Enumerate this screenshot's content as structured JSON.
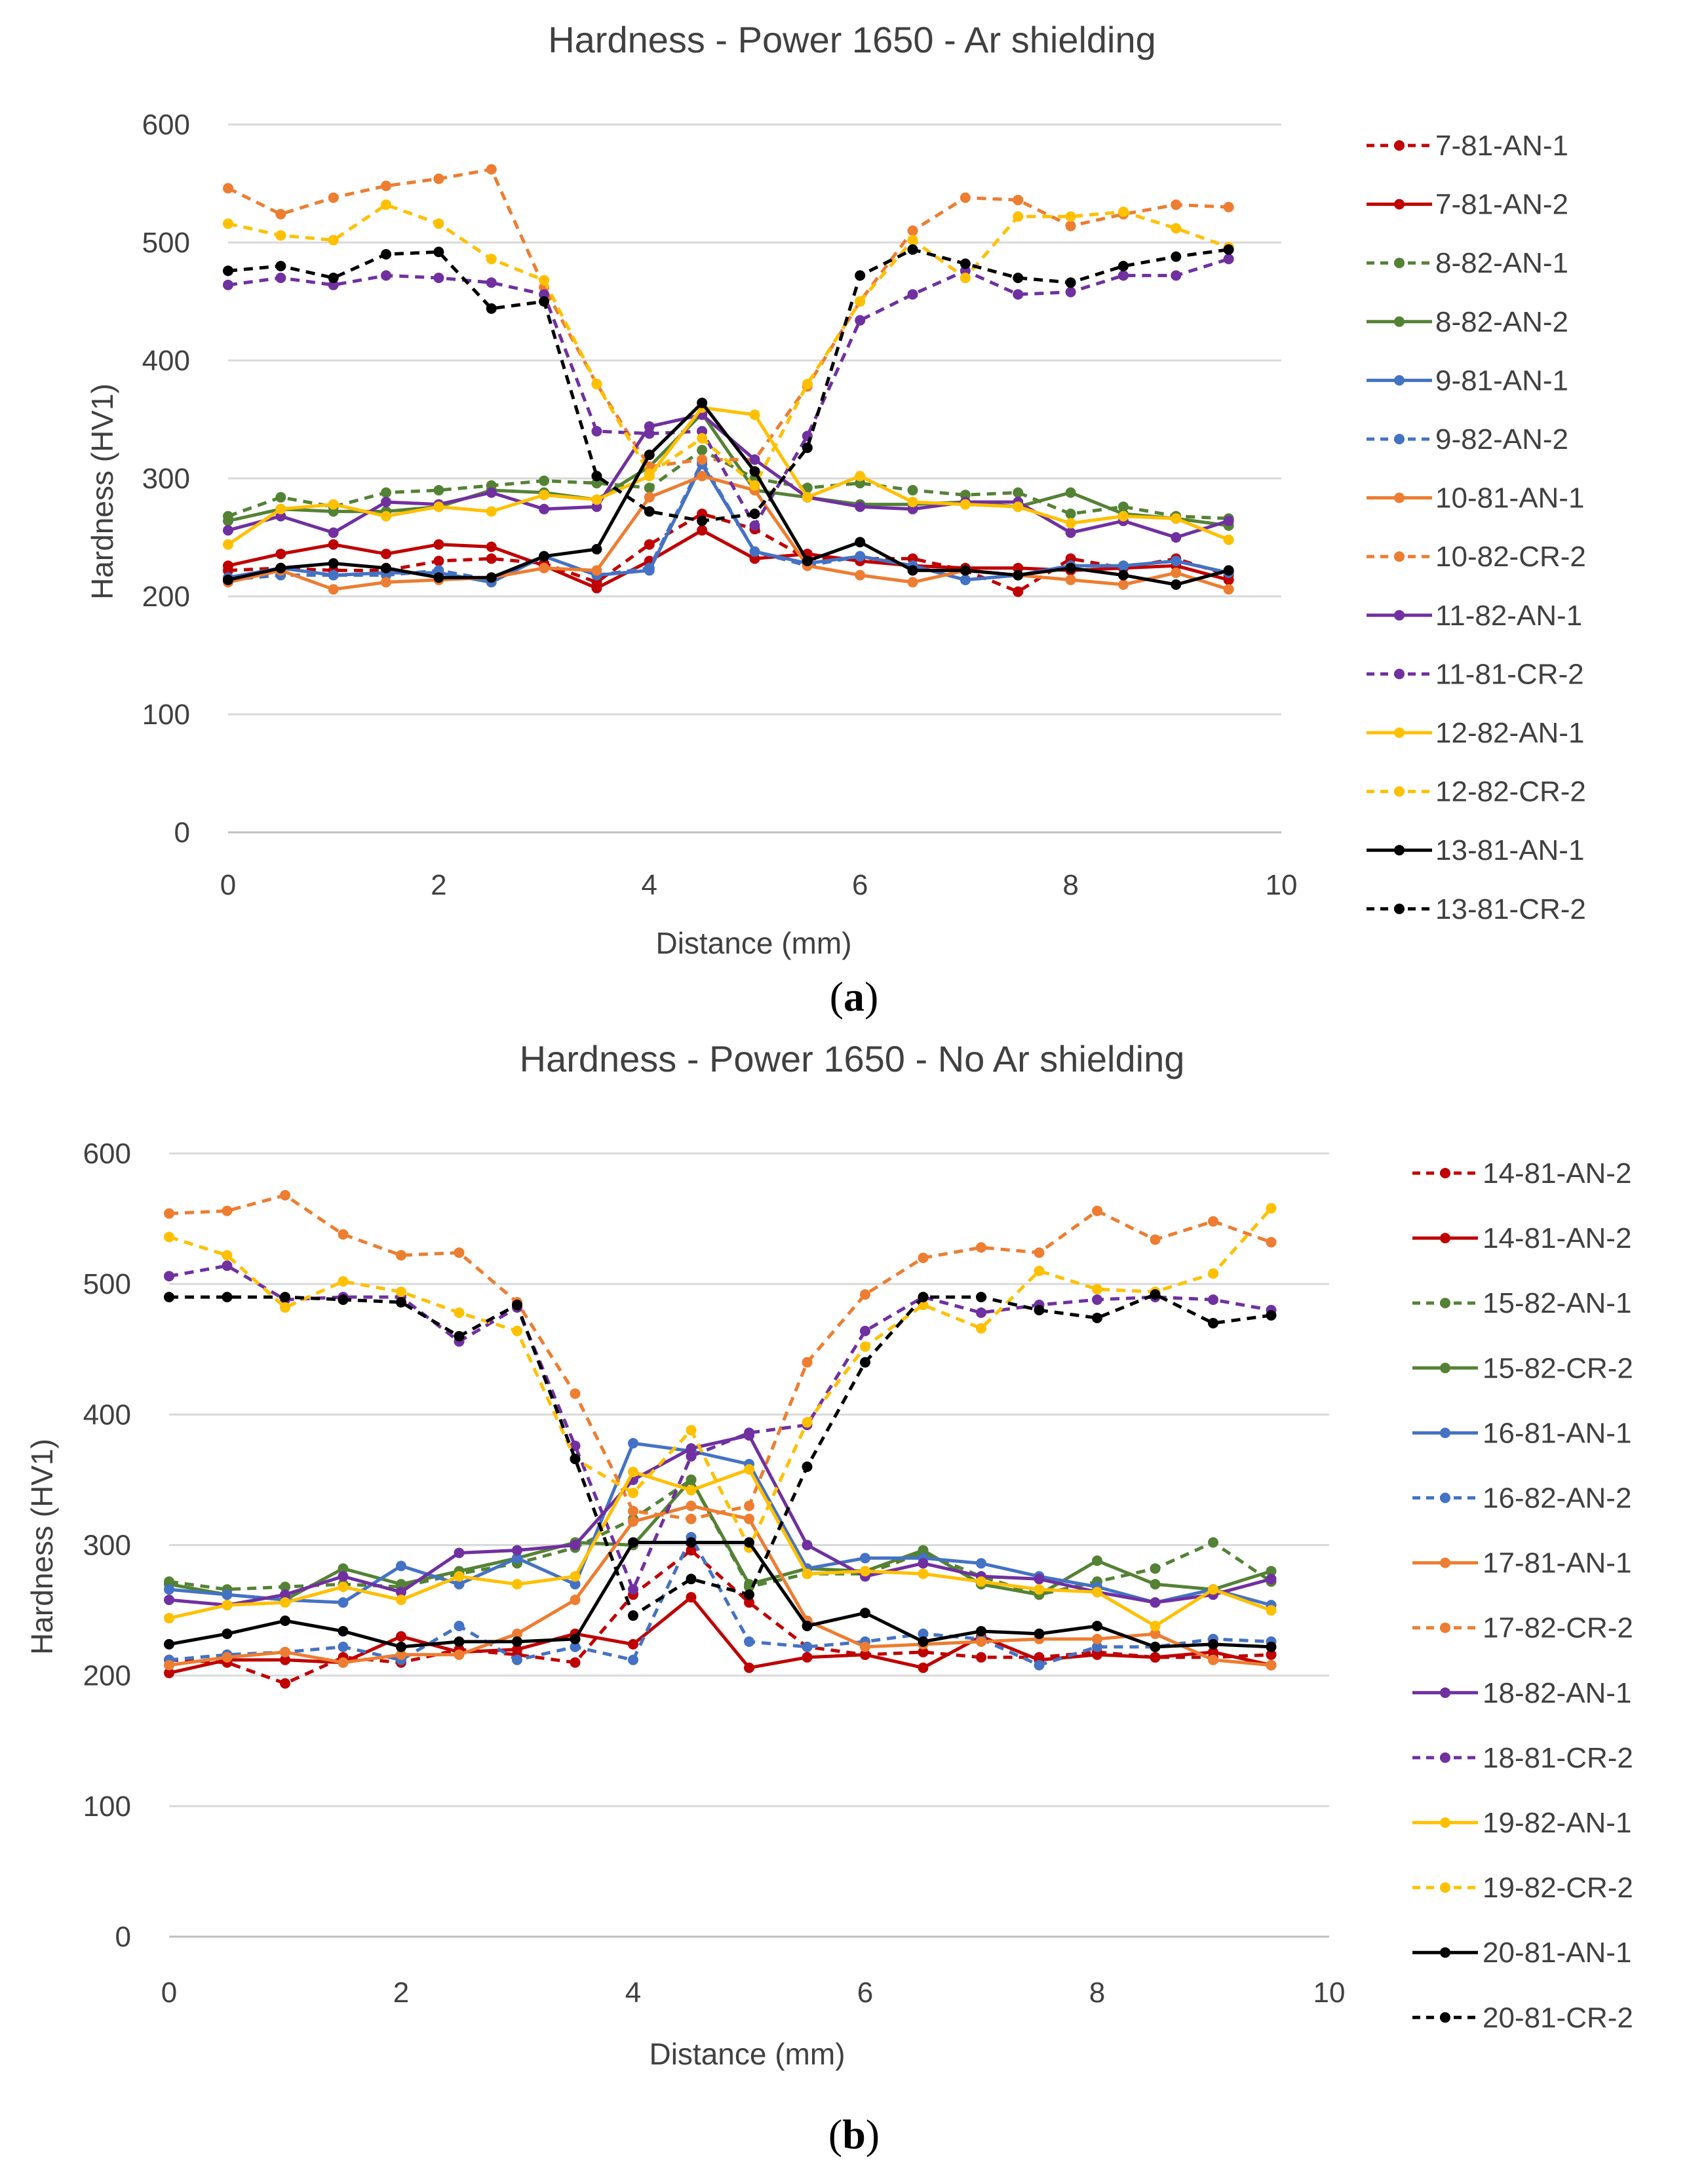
{
  "colors": {
    "red": "#C00000",
    "green": "#548235",
    "blue": "#4472C4",
    "orange": "#ED7D31",
    "purple": "#7030A0",
    "yellow": "#FFC000",
    "black": "#000000",
    "grid": "#D9D9D9",
    "text": "#404040"
  },
  "chart_data": [
    {
      "type": "line",
      "panel_label": "a",
      "title": "Hardness - Power 1650 - Ar shielding",
      "xlabel": "Distance (mm)",
      "ylabel": "Hardness (HV1)",
      "xlim": [
        0,
        10
      ],
      "ylim": [
        0,
        600
      ],
      "x_ticks": [
        0,
        2,
        4,
        6,
        8,
        10
      ],
      "y_ticks": [
        0,
        100,
        200,
        300,
        400,
        500,
        600
      ],
      "grid": "horizontal",
      "legend": "right",
      "x": [
        0,
        0.5,
        1,
        1.5,
        2,
        2.5,
        3,
        3.5,
        4,
        4.5,
        5,
        5.5,
        6,
        6.5,
        7,
        7.5,
        8,
        8.5,
        9,
        9.5
      ],
      "series": [
        {
          "name": "7-81-AN-1",
          "color": "red",
          "dashed": true,
          "values": [
            222,
            224,
            222,
            222,
            230,
            232,
            228,
            212,
            244,
            270,
            257,
            232,
            232,
            232,
            222,
            204,
            232,
            224,
            232,
            218
          ]
        },
        {
          "name": "7-81-AN-2",
          "color": "red",
          "dashed": false,
          "values": [
            226,
            236,
            244,
            236,
            244,
            242,
            226,
            207,
            230,
            256,
            232,
            236,
            230,
            226,
            224,
            224,
            222,
            224,
            226,
            214
          ]
        },
        {
          "name": "8-82-AN-1",
          "color": "green",
          "dashed": true,
          "values": [
            268,
            284,
            276,
            288,
            290,
            294,
            298,
            296,
            292,
            324,
            300,
            292,
            296,
            290,
            286,
            288,
            270,
            276,
            268,
            266
          ]
        },
        {
          "name": "8-82-AN-2",
          "color": "green",
          "dashed": false,
          "values": [
            264,
            274,
            272,
            272,
            276,
            290,
            288,
            282,
            310,
            355,
            290,
            284,
            278,
            278,
            280,
            276,
            288,
            270,
            266,
            260
          ]
        },
        {
          "name": "9-81-AN-1",
          "color": "blue",
          "dashed": false,
          "values": [
            216,
            224,
            218,
            220,
            220,
            212,
            234,
            218,
            222,
            312,
            238,
            228,
            234,
            226,
            214,
            218,
            226,
            226,
            230,
            220
          ]
        },
        {
          "name": "9-82-AN-2",
          "color": "blue",
          "dashed": true,
          "values": [
            214,
            218,
            218,
            218,
            222,
            214,
            234,
            218,
            224,
            314,
            238,
            226,
            234,
            226,
            214,
            218,
            226,
            226,
            230,
            220
          ]
        },
        {
          "name": "10-81-AN-1",
          "color": "orange",
          "dashed": false,
          "values": [
            212,
            222,
            206,
            212,
            214,
            216,
            224,
            222,
            284,
            302,
            290,
            226,
            218,
            212,
            222,
            218,
            214,
            210,
            220,
            206
          ]
        },
        {
          "name": "10-82-CR-2",
          "color": "orange",
          "dashed": true,
          "values": [
            546,
            524,
            538,
            548,
            554,
            562,
            462,
            380,
            310,
            316,
            316,
            378,
            450,
            510,
            538,
            536,
            514,
            524,
            532,
            530
          ]
        },
        {
          "name": "11-82-AN-1",
          "color": "purple",
          "dashed": false,
          "values": [
            256,
            268,
            254,
            280,
            278,
            288,
            274,
            276,
            344,
            354,
            316,
            284,
            276,
            274,
            280,
            280,
            254,
            264,
            250,
            264
          ]
        },
        {
          "name": "11-81-CR-2",
          "color": "purple",
          "dashed": true,
          "values": [
            464,
            470,
            464,
            472,
            470,
            466,
            456,
            340,
            338,
            340,
            260,
            336,
            434,
            456,
            476,
            456,
            458,
            472,
            472,
            486
          ]
        },
        {
          "name": "12-82-AN-1",
          "color": "yellow",
          "dashed": false,
          "values": [
            244,
            274,
            278,
            268,
            276,
            272,
            286,
            282,
            302,
            360,
            354,
            284,
            302,
            280,
            278,
            276,
            262,
            268,
            266,
            248
          ]
        },
        {
          "name": "12-82-CR-2",
          "color": "yellow",
          "dashed": true,
          "values": [
            516,
            506,
            502,
            532,
            516,
            486,
            468,
            380,
            304,
            334,
            294,
            380,
            450,
            502,
            470,
            522,
            522,
            526,
            512,
            496
          ]
        },
        {
          "name": "13-81-AN-1",
          "color": "black",
          "dashed": false,
          "values": [
            214,
            224,
            228,
            224,
            216,
            216,
            234,
            240,
            320,
            364,
            306,
            230,
            246,
            222,
            222,
            218,
            224,
            218,
            210,
            222
          ]
        },
        {
          "name": "13-81-CR-2",
          "color": "black",
          "dashed": true,
          "values": [
            476,
            480,
            470,
            490,
            492,
            444,
            450,
            302,
            272,
            264,
            270,
            326,
            472,
            494,
            482,
            470,
            466,
            480,
            488,
            494
          ]
        }
      ]
    },
    {
      "type": "line",
      "panel_label": "b",
      "title": "Hardness - Power 1650 - No Ar shielding",
      "xlabel": "Distance (mm)",
      "ylabel": "Hardness (HV1)",
      "xlim": [
        0,
        10
      ],
      "ylim": [
        0,
        600
      ],
      "x_ticks": [
        0,
        2,
        4,
        6,
        8,
        10
      ],
      "y_ticks": [
        0,
        100,
        200,
        300,
        400,
        500,
        600
      ],
      "grid": "horizontal",
      "legend": "right",
      "x": [
        0,
        0.5,
        1,
        1.5,
        2,
        2.5,
        3,
        3.5,
        4,
        4.5,
        5,
        5.5,
        6,
        6.5,
        7,
        7.5,
        8,
        8.5,
        9,
        9.5
      ],
      "series": [
        {
          "name": "14-81-AN-2",
          "color": "red",
          "dashed": true,
          "values": [
            212,
            210,
            194,
            214,
            210,
            220,
            216,
            210,
            262,
            296,
            256,
            222,
            216,
            218,
            214,
            214,
            218,
            214,
            214,
            216
          ]
        },
        {
          "name": "14-81-AN-2",
          "color": "red",
          "dashed": false,
          "values": [
            202,
            212,
            212,
            210,
            230,
            218,
            220,
            232,
            224,
            260,
            206,
            214,
            216,
            206,
            230,
            212,
            216,
            214,
            218,
            208
          ]
        },
        {
          "name": "15-82-AN-1",
          "color": "green",
          "dashed": true,
          "values": [
            272,
            266,
            268,
            270,
            268,
            278,
            286,
            298,
            320,
            350,
            268,
            278,
            278,
            294,
            276,
            262,
            272,
            282,
            302,
            272
          ]
        },
        {
          "name": "15-82-CR-2",
          "color": "green",
          "dashed": false,
          "values": [
            270,
            262,
            258,
            282,
            270,
            280,
            290,
            302,
            300,
            350,
            270,
            282,
            280,
            296,
            270,
            262,
            288,
            270,
            266,
            280
          ]
        },
        {
          "name": "16-81-AN-1",
          "color": "blue",
          "dashed": false,
          "values": [
            266,
            262,
            258,
            256,
            284,
            270,
            290,
            270,
            378,
            372,
            362,
            282,
            290,
            290,
            286,
            276,
            268,
            256,
            266,
            254
          ]
        },
        {
          "name": "16-82-AN-2",
          "color": "blue",
          "dashed": true,
          "values": [
            212,
            216,
            218,
            222,
            212,
            238,
            212,
            222,
            212,
            306,
            226,
            222,
            226,
            232,
            228,
            208,
            222,
            222,
            228,
            226
          ]
        },
        {
          "name": "17-81-AN-1",
          "color": "orange",
          "dashed": false,
          "values": [
            208,
            214,
            218,
            210,
            216,
            216,
            232,
            258,
            318,
            330,
            320,
            242,
            222,
            224,
            226,
            228,
            228,
            232,
            212,
            208
          ]
        },
        {
          "name": "17-82-CR-2",
          "color": "orange",
          "dashed": true,
          "values": [
            554,
            556,
            568,
            538,
            522,
            524,
            486,
            416,
            326,
            320,
            330,
            440,
            492,
            520,
            528,
            524,
            556,
            534,
            548,
            532
          ]
        },
        {
          "name": "18-82-AN-1",
          "color": "purple",
          "dashed": false,
          "values": [
            258,
            254,
            262,
            276,
            264,
            294,
            296,
            300,
            350,
            374,
            384,
            300,
            276,
            286,
            276,
            274,
            264,
            256,
            262,
            274
          ]
        },
        {
          "name": "18-81-CR-2",
          "color": "purple",
          "dashed": true,
          "values": [
            506,
            514,
            488,
            490,
            490,
            456,
            482,
            376,
            266,
            368,
            386,
            392,
            464,
            490,
            478,
            484,
            488,
            490,
            488,
            480
          ]
        },
        {
          "name": "19-82-AN-1",
          "color": "yellow",
          "dashed": false,
          "values": [
            244,
            254,
            256,
            268,
            258,
            276,
            270,
            276,
            356,
            342,
            358,
            278,
            280,
            278,
            272,
            266,
            264,
            238,
            266,
            250
          ]
        },
        {
          "name": "19-82-CR-2",
          "color": "yellow",
          "dashed": true,
          "values": [
            536,
            522,
            482,
            502,
            494,
            478,
            464,
            366,
            340,
            388,
            298,
            394,
            452,
            484,
            466,
            510,
            496,
            494,
            508,
            558
          ]
        },
        {
          "name": "20-81-AN-1",
          "color": "black",
          "dashed": false,
          "values": [
            224,
            232,
            242,
            234,
            222,
            226,
            226,
            228,
            302,
            302,
            302,
            238,
            248,
            226,
            234,
            232,
            238,
            222,
            224,
            222
          ]
        },
        {
          "name": "20-81-CR-2",
          "color": "black",
          "dashed": true,
          "values": [
            490,
            490,
            490,
            488,
            486,
            460,
            484,
            366,
            246,
            274,
            262,
            360,
            440,
            490,
            490,
            480,
            474,
            492,
            470,
            476
          ]
        }
      ]
    }
  ]
}
